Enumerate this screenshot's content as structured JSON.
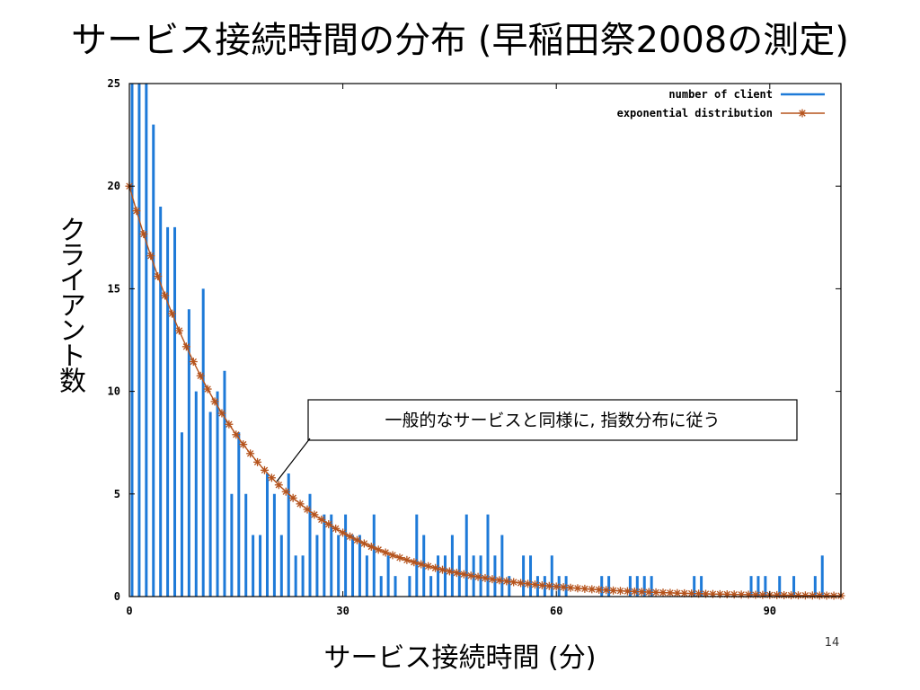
{
  "slide": {
    "title": "サービス接続時間の分布 (早稲田祭2008の測定)",
    "page_number": "14"
  },
  "chart_data": {
    "type": "bar",
    "xlabel": "サービス接続時間 (分)",
    "ylabel": "クライアント数",
    "xlim": [
      0,
      100
    ],
    "ylim": [
      0,
      25
    ],
    "x_ticks": [
      0,
      30,
      60,
      90
    ],
    "y_ticks": [
      0,
      5,
      10,
      15,
      20,
      25
    ],
    "grid": false,
    "legend_position": "top-right",
    "annotation": "一般的なサービスと同様に, 指数分布に従う",
    "colors": {
      "bars": "#1e7ad8",
      "exponential": "#b5531c"
    },
    "series": [
      {
        "name": "number of client",
        "kind": "bar",
        "x": [
          0,
          1,
          2,
          3,
          4,
          5,
          6,
          7,
          8,
          9,
          10,
          11,
          12,
          13,
          14,
          15,
          16,
          17,
          18,
          19,
          20,
          21,
          22,
          23,
          24,
          25,
          26,
          27,
          28,
          29,
          30,
          31,
          32,
          33,
          34,
          35,
          36,
          37,
          38,
          39,
          40,
          41,
          42,
          43,
          44,
          45,
          46,
          47,
          48,
          49,
          50,
          51,
          52,
          53,
          54,
          55,
          56,
          57,
          58,
          59,
          60,
          61,
          62,
          63,
          64,
          65,
          66,
          67,
          68,
          69,
          70,
          71,
          72,
          73,
          74,
          75,
          76,
          77,
          78,
          79,
          80,
          81,
          82,
          83,
          84,
          85,
          86,
          87,
          88,
          89,
          90,
          91,
          92,
          93,
          94,
          95,
          96,
          97,
          98,
          99
        ],
        "values": [
          25,
          25,
          25,
          23,
          19,
          18,
          18,
          8,
          14,
          10,
          15,
          9,
          10,
          11,
          5,
          8,
          5,
          3,
          3,
          6,
          5,
          3,
          6,
          2,
          2,
          5,
          3,
          4,
          4,
          3,
          4,
          3,
          3,
          2,
          4,
          1,
          2,
          1,
          0,
          1,
          4,
          3,
          1,
          2,
          2,
          3,
          2,
          4,
          2,
          2,
          4,
          2,
          3,
          1,
          0,
          2,
          2,
          1,
          1,
          2,
          1,
          1,
          0,
          0,
          0,
          0,
          1,
          1,
          0,
          0,
          1,
          1,
          1,
          1,
          0,
          0,
          0,
          0,
          0,
          1,
          1,
          0,
          0,
          0,
          0,
          0,
          0,
          1,
          1,
          1,
          0,
          1,
          0,
          1,
          0,
          0,
          1,
          2,
          0,
          0
        ]
      },
      {
        "name": "exponential distribution",
        "kind": "line",
        "x0": 20,
        "rate": 0.062
      }
    ]
  }
}
